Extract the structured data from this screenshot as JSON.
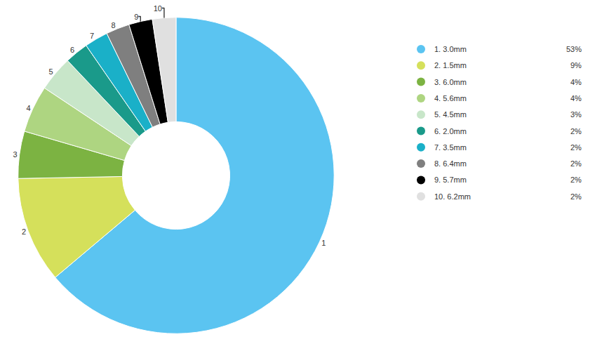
{
  "chart_data": {
    "type": "donut",
    "categories": [
      "1. 3.0mm",
      "2. 1.5mm",
      "3. 6.0mm",
      "4. 5.6mm",
      "5. 4.5mm",
      "6. 2.0mm",
      "7. 3.5mm",
      "8. 6.4mm",
      "9. 5.7mm",
      "10. 6.2mm"
    ],
    "values": [
      53,
      9,
      4,
      4,
      3,
      2,
      2,
      2,
      2,
      2
    ],
    "value_labels": [
      "53%",
      "9%",
      "4%",
      "4%",
      "3%",
      "2%",
      "2%",
      "2%",
      "2%",
      "2%"
    ],
    "slice_labels": [
      "1",
      "2",
      "3",
      "4",
      "5",
      "6",
      "7",
      "8",
      "9",
      "10"
    ],
    "colors": [
      "#5bc4f1",
      "#d5e05b",
      "#7cb342",
      "#aed581",
      "#c8e6c9",
      "#1a9a8a",
      "#1ab0c8",
      "#7f7f7f",
      "#000000",
      "#e0e0e0"
    ],
    "legend": "right"
  }
}
